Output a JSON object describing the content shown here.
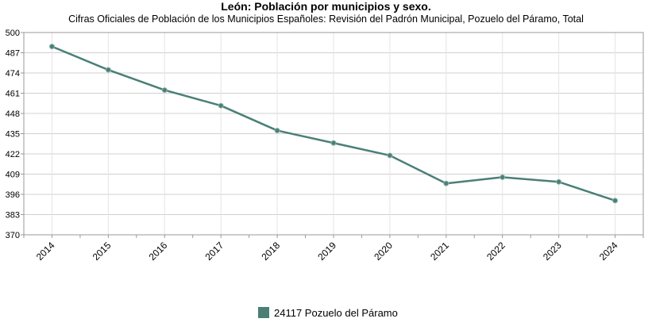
{
  "chart_data": {
    "type": "line",
    "title": "León: Población por municipios y sexo.",
    "subtitle": "Cifras Oficiales de Población de los Municipios Españoles: Revisión del Padrón Municipal, Pozuelo del Páramo, Total",
    "categories": [
      "2014",
      "2015",
      "2016",
      "2017",
      "2018",
      "2019",
      "2020",
      "2021",
      "2022",
      "2023",
      "2024"
    ],
    "series": [
      {
        "name": "24117 Pozuelo del Páramo",
        "color": "#4a7f76",
        "values": [
          491,
          476,
          463,
          453,
          437,
          429,
          421,
          403,
          407,
          404,
          392
        ]
      }
    ],
    "ylim": [
      370,
      500
    ],
    "yticks": [
      "370",
      "383",
      "396",
      "409",
      "422",
      "435",
      "448",
      "461",
      "474",
      "487",
      "500"
    ],
    "xlabel": "",
    "ylabel": "",
    "grid": true,
    "legend_position": "bottom"
  }
}
